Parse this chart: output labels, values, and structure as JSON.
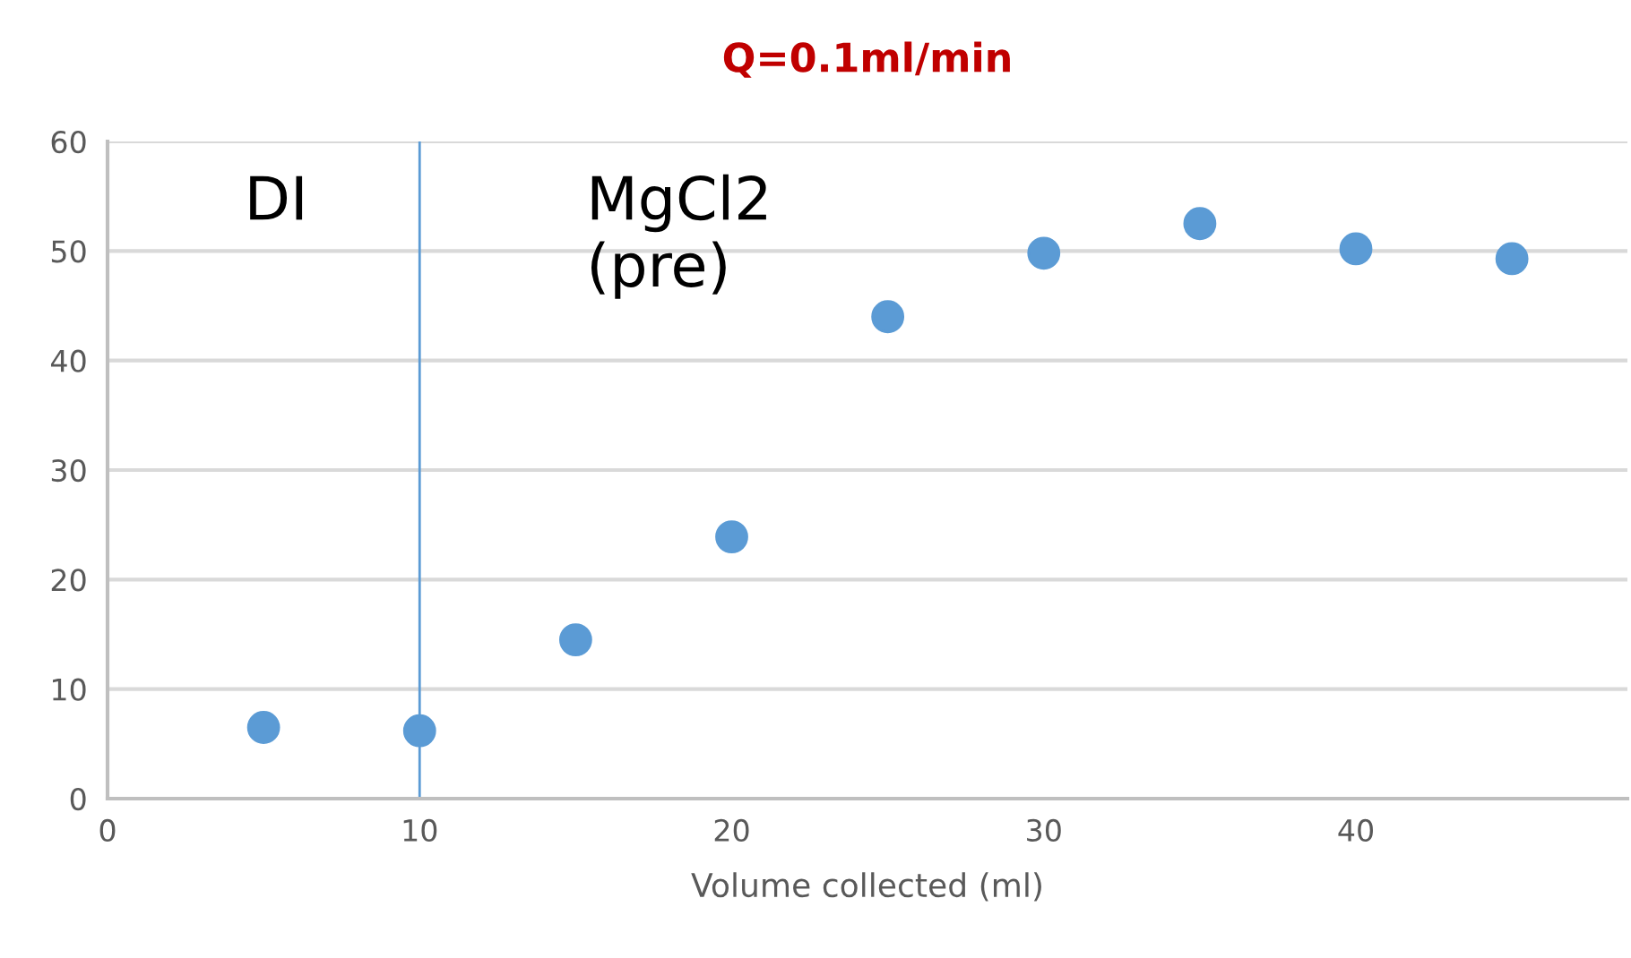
{
  "chart_data": {
    "type": "scatter",
    "title": "Q=0.1ml/min",
    "xlabel": "Volume collected (ml)",
    "x": [
      5,
      10,
      15,
      20,
      25,
      30,
      35,
      40,
      45
    ],
    "series": [
      {
        "color": "#5b9bd5",
        "values": [
          6.5,
          6.2,
          14.5,
          23.9,
          44,
          49.8,
          52.5,
          50.2,
          49.3
        ]
      }
    ],
    "xlim": [
      0,
      48.7
    ],
    "xticks": [
      0,
      10,
      20,
      30,
      40
    ],
    "ylim": [
      0,
      60
    ],
    "yticks": [
      0,
      10,
      20,
      30,
      40,
      50,
      60
    ],
    "grid": "y",
    "marker": "circle",
    "legend": false,
    "ref_lines": [
      {
        "axis": "x",
        "value": 10,
        "color": "#5b9bd5"
      }
    ],
    "annotations": [
      "DI",
      "MgCl2\n(pre)"
    ]
  }
}
